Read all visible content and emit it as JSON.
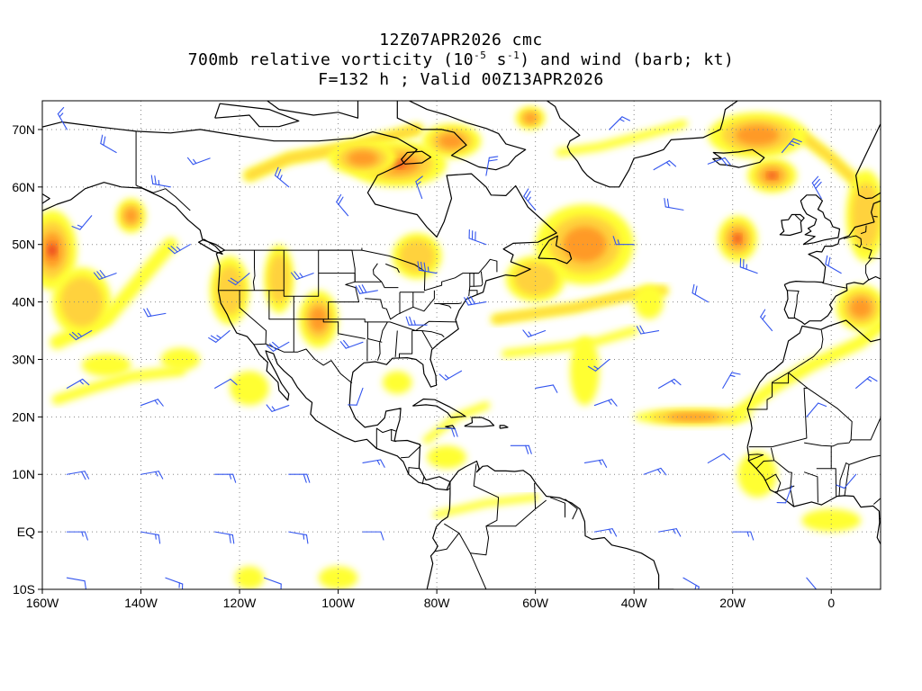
{
  "title": {
    "line1": "12Z07APR2026 cmc",
    "line2_prefix": "700mb relative vorticity (10",
    "line2_exp1": "-5",
    "line2_mid": " s",
    "line2_exp2": "-1",
    "line2_suffix": ") and wind (barb; kt)",
    "line3": "F=132 h ; Valid 00Z13APR2026"
  },
  "map": {
    "lon_range": [
      -160,
      10
    ],
    "lat_range": [
      -10,
      75
    ],
    "lon_ticks": [
      {
        "value": -160,
        "label": "160W"
      },
      {
        "value": -140,
        "label": "140W"
      },
      {
        "value": -120,
        "label": "120W"
      },
      {
        "value": -100,
        "label": "100W"
      },
      {
        "value": -80,
        "label": "80W"
      },
      {
        "value": -60,
        "label": "60W"
      },
      {
        "value": -40,
        "label": "40W"
      },
      {
        "value": -20,
        "label": "20W"
      },
      {
        "value": 0,
        "label": "0"
      }
    ],
    "lat_ticks": [
      {
        "value": 70,
        "label": "70N"
      },
      {
        "value": 60,
        "label": "60N"
      },
      {
        "value": 50,
        "label": "50N"
      },
      {
        "value": 40,
        "label": "40N"
      },
      {
        "value": 30,
        "label": "30N"
      },
      {
        "value": 20,
        "label": "20N"
      },
      {
        "value": 10,
        "label": "10N"
      },
      {
        "value": 0,
        "label": "EQ"
      },
      {
        "value": -10,
        "label": "10S"
      }
    ],
    "grid": "dotted",
    "colors": {
      "low": "#ffff33",
      "mid": "#ffd23c",
      "high": "#ff9a28",
      "peak": "#e8361c",
      "barb": "#3355ee",
      "coast": "#000000"
    },
    "vorticity_blobs": [
      {
        "lon": -88,
        "lat": 64,
        "rx": 10,
        "ry": 4,
        "level": 4
      },
      {
        "lon": -95,
        "lat": 65,
        "rx": 7,
        "ry": 3,
        "level": 3
      },
      {
        "lon": -77,
        "lat": 68,
        "rx": 6,
        "ry": 3,
        "level": 3
      },
      {
        "lon": -61,
        "lat": 72,
        "rx": 3,
        "ry": 2,
        "level": 3
      },
      {
        "lon": -50,
        "lat": 50,
        "rx": 10,
        "ry": 7,
        "level": 3
      },
      {
        "lon": -60,
        "lat": 44,
        "rx": 6,
        "ry": 4,
        "level": 2
      },
      {
        "lon": -12,
        "lat": 62,
        "rx": 5,
        "ry": 3,
        "level": 4
      },
      {
        "lon": -15,
        "lat": 69,
        "rx": 10,
        "ry": 4,
        "level": 3
      },
      {
        "lon": -19,
        "lat": 51,
        "rx": 4,
        "ry": 4,
        "level": 4
      },
      {
        "lon": -158,
        "lat": 49,
        "rx": 5,
        "ry": 7,
        "level": 4
      },
      {
        "lon": -152,
        "lat": 40,
        "rx": 6,
        "ry": 6,
        "level": 2
      },
      {
        "lon": -142,
        "lat": 55,
        "rx": 3,
        "ry": 3,
        "level": 3
      },
      {
        "lon": -122,
        "lat": 42,
        "rx": 4,
        "ry": 6,
        "level": 2
      },
      {
        "lon": -112,
        "lat": 44,
        "rx": 3,
        "ry": 6,
        "level": 2
      },
      {
        "lon": -104,
        "lat": 37,
        "rx": 4,
        "ry": 5,
        "level": 3
      },
      {
        "lon": -28,
        "lat": 20,
        "rx": 12,
        "ry": 1.5,
        "level": 3
      },
      {
        "lon": 6,
        "lat": 39,
        "rx": 5,
        "ry": 4,
        "level": 3
      },
      {
        "lon": 7,
        "lat": 55,
        "rx": 4,
        "ry": 8,
        "level": 2
      },
      {
        "lon": -118,
        "lat": 25,
        "rx": 4,
        "ry": 3,
        "level": 1
      },
      {
        "lon": -84,
        "lat": 48,
        "rx": 5,
        "ry": 4,
        "level": 2
      },
      {
        "lon": -88,
        "lat": 26,
        "rx": 3,
        "ry": 2,
        "level": 1
      },
      {
        "lon": -78,
        "lat": 13,
        "rx": 4,
        "ry": 2,
        "level": 1
      },
      {
        "lon": -15,
        "lat": 10,
        "rx": 4,
        "ry": 4,
        "level": 1
      },
      {
        "lon": 0,
        "lat": 2,
        "rx": 6,
        "ry": 2,
        "level": 1
      },
      {
        "lon": -100,
        "lat": -8,
        "rx": 4,
        "ry": 2,
        "level": 1
      },
      {
        "lon": -118,
        "lat": -8,
        "rx": 3,
        "ry": 2,
        "level": 1
      },
      {
        "lon": -50,
        "lat": 28,
        "rx": 3,
        "ry": 6,
        "level": 1
      },
      {
        "lon": -37,
        "lat": 40,
        "rx": 3,
        "ry": 3,
        "level": 1
      },
      {
        "lon": -132,
        "lat": 30,
        "rx": 4,
        "ry": 2,
        "level": 1
      },
      {
        "lon": -147,
        "lat": 29,
        "rx": 5,
        "ry": 2,
        "level": 1
      }
    ],
    "vorticity_bands": [
      {
        "points": [
          [
            -157,
            33
          ],
          [
            -147,
            37
          ],
          [
            -140,
            44
          ],
          [
            -134,
            50
          ]
        ],
        "width": 2.5,
        "level": 1
      },
      {
        "points": [
          [
            -157,
            23
          ],
          [
            -150,
            25
          ],
          [
            -142,
            27
          ],
          [
            -132,
            28
          ]
        ],
        "width": 1.8,
        "level": 1
      },
      {
        "points": [
          [
            -118,
            62
          ],
          [
            -110,
            65
          ],
          [
            -97,
            67
          ],
          [
            -84,
            70
          ]
        ],
        "width": 2.2,
        "level": 2
      },
      {
        "points": [
          [
            -68,
            37
          ],
          [
            -60,
            38
          ],
          [
            -52,
            39
          ],
          [
            -42,
            41
          ],
          [
            -34,
            42
          ]
        ],
        "width": 1.8,
        "level": 2
      },
      {
        "points": [
          [
            -66,
            31
          ],
          [
            -56,
            32
          ],
          [
            -48,
            33
          ],
          [
            -40,
            35
          ]
        ],
        "width": 1.5,
        "level": 1
      },
      {
        "points": [
          [
            -20,
            20
          ],
          [
            -12,
            25
          ],
          [
            -4,
            29
          ],
          [
            6,
            33
          ],
          [
            10,
            36
          ]
        ],
        "width": 2.2,
        "level": 1
      },
      {
        "points": [
          [
            -6,
            69
          ],
          [
            0,
            65
          ],
          [
            5,
            61
          ],
          [
            9,
            56
          ]
        ],
        "width": 2,
        "level": 2
      },
      {
        "points": [
          [
            -55,
            66
          ],
          [
            -47,
            67
          ],
          [
            -38,
            69
          ],
          [
            -30,
            71
          ]
        ],
        "width": 1.5,
        "level": 1
      },
      {
        "points": [
          [
            -82,
            16
          ],
          [
            -76,
            20
          ],
          [
            -70,
            22
          ]
        ],
        "width": 1.4,
        "level": 1
      },
      {
        "points": [
          [
            -80,
            3
          ],
          [
            -70,
            5
          ],
          [
            -60,
            6
          ]
        ],
        "width": 1.3,
        "level": 1
      }
    ],
    "wind_barbs": [
      {
        "lon": -155,
        "lat": 70,
        "dir": 330,
        "kt": 15
      },
      {
        "lon": -145,
        "lat": 66,
        "dir": 300,
        "kt": 20
      },
      {
        "lon": -134,
        "lat": 60,
        "dir": 280,
        "kt": 25
      },
      {
        "lon": -126,
        "lat": 65,
        "dir": 250,
        "kt": 15
      },
      {
        "lon": -110,
        "lat": 60,
        "dir": 310,
        "kt": 25
      },
      {
        "lon": -98,
        "lat": 55,
        "dir": 320,
        "kt": 20
      },
      {
        "lon": -83,
        "lat": 58,
        "dir": 340,
        "kt": 15
      },
      {
        "lon": -70,
        "lat": 62,
        "dir": 10,
        "kt": 20
      },
      {
        "lon": -60,
        "lat": 56,
        "dir": 320,
        "kt": 25
      },
      {
        "lon": -45,
        "lat": 70,
        "dir": 45,
        "kt": 15
      },
      {
        "lon": -36,
        "lat": 63,
        "dir": 60,
        "kt": 15
      },
      {
        "lon": -25,
        "lat": 64,
        "dir": 70,
        "kt": 20
      },
      {
        "lon": -10,
        "lat": 66,
        "dir": 40,
        "kt": 25
      },
      {
        "lon": -2,
        "lat": 58,
        "dir": 330,
        "kt": 30
      },
      {
        "lon": -30,
        "lat": 56,
        "dir": 280,
        "kt": 20
      },
      {
        "lon": -40,
        "lat": 50,
        "dir": 270,
        "kt": 15
      },
      {
        "lon": -150,
        "lat": 55,
        "dir": 220,
        "kt": 15
      },
      {
        "lon": -145,
        "lat": 45,
        "dir": 250,
        "kt": 30
      },
      {
        "lon": -130,
        "lat": 50,
        "dir": 240,
        "kt": 25
      },
      {
        "lon": -118,
        "lat": 45,
        "dir": 230,
        "kt": 20
      },
      {
        "lon": -105,
        "lat": 45,
        "dir": 250,
        "kt": 25
      },
      {
        "lon": -92,
        "lat": 42,
        "dir": 260,
        "kt": 30
      },
      {
        "lon": -80,
        "lat": 45,
        "dir": 280,
        "kt": 35
      },
      {
        "lon": -70,
        "lat": 50,
        "dir": 290,
        "kt": 30
      },
      {
        "lon": -150,
        "lat": 35,
        "dir": 240,
        "kt": 25
      },
      {
        "lon": -135,
        "lat": 38,
        "dir": 260,
        "kt": 20
      },
      {
        "lon": -122,
        "lat": 35,
        "dir": 230,
        "kt": 25
      },
      {
        "lon": -110,
        "lat": 33,
        "dir": 240,
        "kt": 30
      },
      {
        "lon": -95,
        "lat": 33,
        "dir": 250,
        "kt": 20
      },
      {
        "lon": -82,
        "lat": 36,
        "dir": 270,
        "kt": 25
      },
      {
        "lon": -70,
        "lat": 40,
        "dir": 260,
        "kt": 30
      },
      {
        "lon": -58,
        "lat": 35,
        "dir": 250,
        "kt": 15
      },
      {
        "lon": -45,
        "lat": 30,
        "dir": 230,
        "kt": 15
      },
      {
        "lon": -35,
        "lat": 35,
        "dir": 260,
        "kt": 20
      },
      {
        "lon": -25,
        "lat": 40,
        "dir": 300,
        "kt": 20
      },
      {
        "lon": -12,
        "lat": 35,
        "dir": 320,
        "kt": 15
      },
      {
        "lon": 2,
        "lat": 45,
        "dir": 300,
        "kt": 20
      },
      {
        "lon": -15,
        "lat": 45,
        "dir": 290,
        "kt": 25
      },
      {
        "lon": -155,
        "lat": 25,
        "dir": 60,
        "kt": 15
      },
      {
        "lon": -140,
        "lat": 22,
        "dir": 70,
        "kt": 15
      },
      {
        "lon": -125,
        "lat": 25,
        "dir": 60,
        "kt": 10
      },
      {
        "lon": -110,
        "lat": 22,
        "dir": 250,
        "kt": 15
      },
      {
        "lon": -95,
        "lat": 25,
        "dir": 200,
        "kt": 10
      },
      {
        "lon": -75,
        "lat": 28,
        "dir": 240,
        "kt": 15
      },
      {
        "lon": -60,
        "lat": 25,
        "dir": 80,
        "kt": 10
      },
      {
        "lon": -48,
        "lat": 22,
        "dir": 70,
        "kt": 15
      },
      {
        "lon": -35,
        "lat": 25,
        "dir": 60,
        "kt": 15
      },
      {
        "lon": -22,
        "lat": 25,
        "dir": 30,
        "kt": 15
      },
      {
        "lon": -5,
        "lat": 20,
        "dir": 40,
        "kt": 10
      },
      {
        "lon": 5,
        "lat": 25,
        "dir": 50,
        "kt": 15
      },
      {
        "lon": -155,
        "lat": 10,
        "dir": 80,
        "kt": 20
      },
      {
        "lon": -140,
        "lat": 10,
        "dir": 80,
        "kt": 15
      },
      {
        "lon": -125,
        "lat": 10,
        "dir": 90,
        "kt": 15
      },
      {
        "lon": -110,
        "lat": 10,
        "dir": 90,
        "kt": 20
      },
      {
        "lon": -95,
        "lat": 12,
        "dir": 80,
        "kt": 15
      },
      {
        "lon": -80,
        "lat": 18,
        "dir": 90,
        "kt": 20
      },
      {
        "lon": -65,
        "lat": 15,
        "dir": 90,
        "kt": 20
      },
      {
        "lon": -50,
        "lat": 12,
        "dir": 80,
        "kt": 15
      },
      {
        "lon": -38,
        "lat": 10,
        "dir": 70,
        "kt": 15
      },
      {
        "lon": -25,
        "lat": 12,
        "dir": 60,
        "kt": 10
      },
      {
        "lon": -8,
        "lat": 8,
        "dir": 200,
        "kt": 10
      },
      {
        "lon": 5,
        "lat": 10,
        "dir": 220,
        "kt": 10
      },
      {
        "lon": -155,
        "lat": 0,
        "dir": 90,
        "kt": 15
      },
      {
        "lon": -140,
        "lat": 0,
        "dir": 100,
        "kt": 15
      },
      {
        "lon": -125,
        "lat": 0,
        "dir": 100,
        "kt": 20
      },
      {
        "lon": -110,
        "lat": 0,
        "dir": 100,
        "kt": 15
      },
      {
        "lon": -95,
        "lat": 0,
        "dir": 90,
        "kt": 10
      },
      {
        "lon": -48,
        "lat": 0,
        "dir": 80,
        "kt": 15
      },
      {
        "lon": -35,
        "lat": 0,
        "dir": 80,
        "kt": 15
      },
      {
        "lon": -20,
        "lat": 0,
        "dir": 90,
        "kt": 15
      },
      {
        "lon": -155,
        "lat": -8,
        "dir": 100,
        "kt": 10
      },
      {
        "lon": -135,
        "lat": -8,
        "dir": 110,
        "kt": 15
      },
      {
        "lon": -115,
        "lat": -8,
        "dir": 110,
        "kt": 10
      },
      {
        "lon": -30,
        "lat": -8,
        "dir": 120,
        "kt": 15
      },
      {
        "lon": -5,
        "lat": -8,
        "dir": 140,
        "kt": 10
      }
    ]
  }
}
